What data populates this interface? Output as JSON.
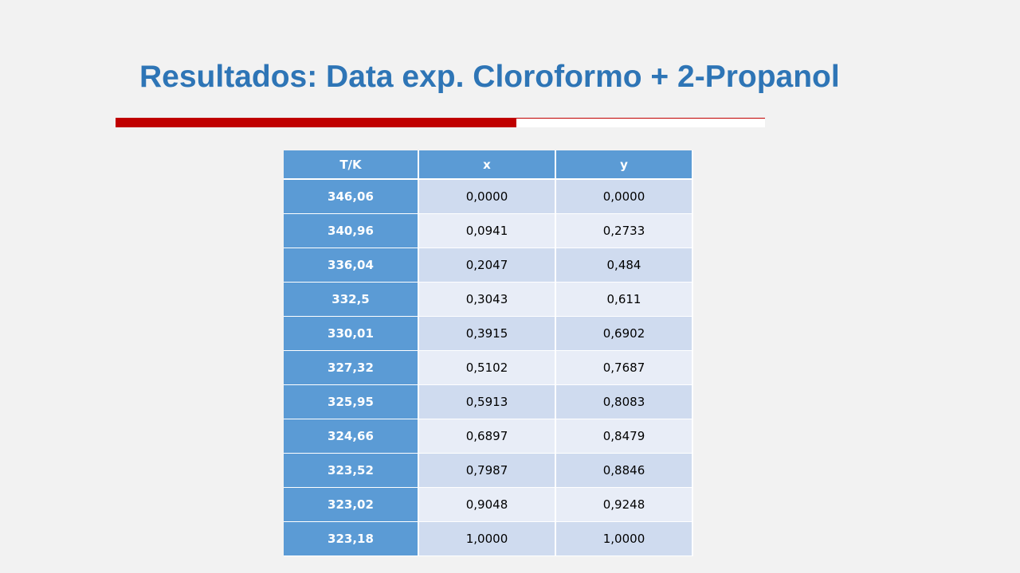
{
  "title": "Resultados: Data exp. Cloroformo + 2-Propanol",
  "colors": {
    "title": "#2e75b6",
    "rule_red": "#c00000",
    "header_bg": "#5b9bd5",
    "row_odd_bg": "#cfdbef",
    "row_even_bg": "#e8edf7"
  },
  "table": {
    "headers": [
      "T/K",
      "x",
      "y"
    ],
    "rows": [
      {
        "t": "346,06",
        "x": "0,0000",
        "y": "0,0000"
      },
      {
        "t": "340,96",
        "x": "0,0941",
        "y": "0,2733"
      },
      {
        "t": "336,04",
        "x": "0,2047",
        "y": "0,484"
      },
      {
        "t": "332,5",
        "x": "0,3043",
        "y": "0,611"
      },
      {
        "t": "330,01",
        "x": "0,3915",
        "y": "0,6902"
      },
      {
        "t": "327,32",
        "x": "0,5102",
        "y": "0,7687"
      },
      {
        "t": "325,95",
        "x": "0,5913",
        "y": "0,8083"
      },
      {
        "t": "324,66",
        "x": "0,6897",
        "y": "0,8479"
      },
      {
        "t": "323,52",
        "x": "0,7987",
        "y": "0,8846"
      },
      {
        "t": "323,02",
        "x": "0,9048",
        "y": "0,9248"
      },
      {
        "t": "323,18",
        "x": "1,0000",
        "y": "1,0000"
      }
    ]
  }
}
